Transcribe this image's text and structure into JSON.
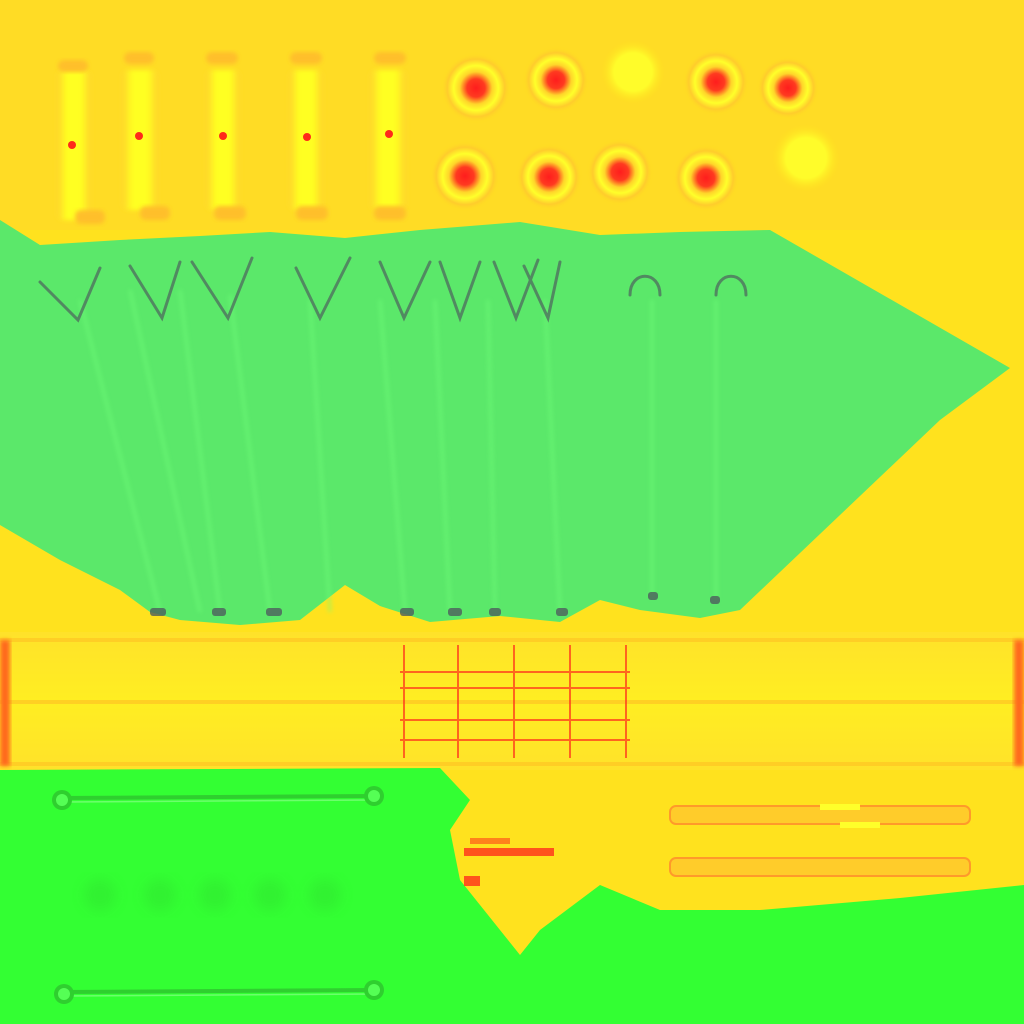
{
  "colors": {
    "background": "#ffe21e",
    "background_soft": "#ffd52a",
    "green_panel": "#5be86a",
    "green_panel_light": "#66f071",
    "green_bright": "#33ff33",
    "green_line": "#2fcf2f",
    "pin_center": "#ff2a1a",
    "pin_halo": "#ffb12b",
    "pin_glow": "#ffff2a",
    "bar_line": "#ffc824",
    "fret_red": "#ff3a1c",
    "edge_red": "#ff6a1a",
    "dark_mark": "#4e5e5e",
    "pale_yellow": "#fff033"
  },
  "content": {
    "text": []
  }
}
